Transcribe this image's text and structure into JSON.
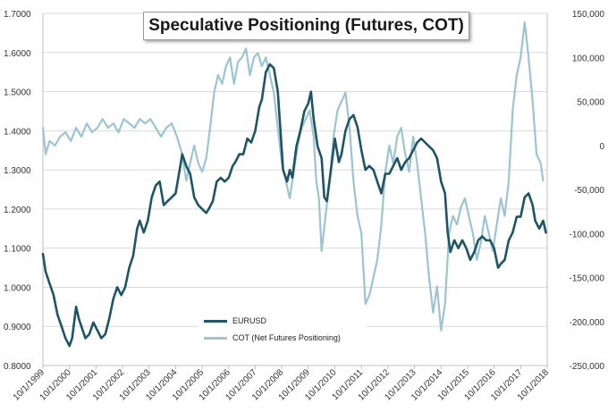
{
  "chart_data": {
    "type": "line",
    "title": "Speculative Positioning (Futures, COT)",
    "left_axis": {
      "min": 0.8,
      "max": 1.7,
      "step": 0.1,
      "ticks": [
        "0.8000",
        "0.9000",
        "1.0000",
        "1.1000",
        "1.2000",
        "1.3000",
        "1.4000",
        "1.5000",
        "1.6000",
        "1.7000"
      ]
    },
    "right_axis": {
      "min": -250000,
      "max": 150000,
      "step": 50000,
      "ticks": [
        "-250,000",
        "-200,000",
        "-150,000",
        "-100,000",
        "-50,000",
        "0",
        "50,000",
        "100,000",
        "150,000"
      ]
    },
    "x_axis": {
      "min": 1999.75,
      "max": 2018.75,
      "ticks": [
        "10/1/1999",
        "10/1/2000",
        "10/1/2001",
        "10/1/2002",
        "10/1/2003",
        "10/1/2004",
        "10/1/2005",
        "10/1/2006",
        "10/1/2007",
        "10/1/2008",
        "10/1/2009",
        "10/1/2010",
        "10/1/2011",
        "10/1/2012",
        "10/1/2013",
        "10/1/2014",
        "10/1/2015",
        "10/1/2016",
        "10/1/2017",
        "10/1/2018"
      ]
    },
    "grid": true,
    "legend_position": "bottom-center",
    "series": [
      {
        "name": "EURUSD",
        "axis": "left",
        "color": "#1e5566",
        "x": [
          1999.75,
          1999.85,
          2000.0,
          2000.15,
          2000.3,
          2000.45,
          2000.6,
          2000.75,
          2000.85,
          2001.0,
          2001.1,
          2001.2,
          2001.35,
          2001.5,
          2001.65,
          2001.8,
          2001.95,
          2002.1,
          2002.25,
          2002.4,
          2002.55,
          2002.7,
          2002.85,
          2003.0,
          2003.15,
          2003.3,
          2003.4,
          2003.55,
          2003.7,
          2003.85,
          2004.0,
          2004.15,
          2004.3,
          2004.45,
          2004.6,
          2004.75,
          2004.9,
          2005.0,
          2005.15,
          2005.3,
          2005.45,
          2005.6,
          2005.75,
          2005.9,
          2006.0,
          2006.15,
          2006.3,
          2006.45,
          2006.6,
          2006.75,
          2006.9,
          2007.0,
          2007.15,
          2007.3,
          2007.45,
          2007.6,
          2007.75,
          2007.9,
          2008.0,
          2008.15,
          2008.3,
          2008.45,
          2008.6,
          2008.7,
          2008.8,
          2008.95,
          2009.05,
          2009.15,
          2009.3,
          2009.45,
          2009.6,
          2009.75,
          2009.85,
          2009.95,
          2010.1,
          2010.25,
          2010.35,
          2010.45,
          2010.6,
          2010.75,
          2010.9,
          2011.0,
          2011.15,
          2011.3,
          2011.45,
          2011.6,
          2011.75,
          2011.9,
          2012.05,
          2012.2,
          2012.35,
          2012.5,
          2012.65,
          2012.8,
          2012.95,
          2013.1,
          2013.25,
          2013.4,
          2013.55,
          2013.7,
          2013.85,
          2014.0,
          2014.15,
          2014.3,
          2014.45,
          2014.6,
          2014.75,
          2014.9,
          2015.0,
          2015.1,
          2015.25,
          2015.4,
          2015.55,
          2015.7,
          2015.85,
          2016.0,
          2016.15,
          2016.3,
          2016.45,
          2016.6,
          2016.75,
          2016.9,
          2017.0,
          2017.15,
          2017.3,
          2017.45,
          2017.6,
          2017.75,
          2017.9,
          2018.05,
          2018.2,
          2018.3,
          2018.45,
          2018.6,
          2018.7
        ],
        "y": [
          1.085,
          1.04,
          1.01,
          0.98,
          0.93,
          0.9,
          0.87,
          0.85,
          0.87,
          0.95,
          0.92,
          0.9,
          0.87,
          0.88,
          0.91,
          0.89,
          0.87,
          0.88,
          0.92,
          0.97,
          1.0,
          0.98,
          1.0,
          1.05,
          1.08,
          1.15,
          1.17,
          1.14,
          1.17,
          1.23,
          1.26,
          1.27,
          1.21,
          1.22,
          1.23,
          1.24,
          1.3,
          1.34,
          1.31,
          1.29,
          1.23,
          1.21,
          1.2,
          1.19,
          1.2,
          1.22,
          1.27,
          1.28,
          1.27,
          1.28,
          1.31,
          1.32,
          1.34,
          1.34,
          1.38,
          1.37,
          1.4,
          1.46,
          1.48,
          1.55,
          1.57,
          1.56,
          1.5,
          1.4,
          1.3,
          1.27,
          1.3,
          1.28,
          1.36,
          1.4,
          1.45,
          1.47,
          1.5,
          1.43,
          1.36,
          1.33,
          1.23,
          1.22,
          1.3,
          1.38,
          1.32,
          1.34,
          1.4,
          1.43,
          1.44,
          1.41,
          1.35,
          1.3,
          1.31,
          1.3,
          1.27,
          1.24,
          1.29,
          1.29,
          1.31,
          1.33,
          1.3,
          1.32,
          1.33,
          1.35,
          1.37,
          1.38,
          1.37,
          1.36,
          1.35,
          1.33,
          1.27,
          1.24,
          1.14,
          1.09,
          1.12,
          1.1,
          1.12,
          1.1,
          1.07,
          1.09,
          1.12,
          1.13,
          1.12,
          1.12,
          1.1,
          1.05,
          1.06,
          1.07,
          1.12,
          1.14,
          1.18,
          1.18,
          1.23,
          1.24,
          1.21,
          1.17,
          1.15,
          1.17,
          1.14
        ]
      },
      {
        "name": "COT (Net Futures Positioning)",
        "axis": "right",
        "color": "#9cc4d3",
        "x": [
          1999.75,
          1999.85,
          2000.0,
          2000.2,
          2000.4,
          2000.6,
          2000.8,
          2001.0,
          2001.2,
          2001.4,
          2001.6,
          2001.8,
          2002.0,
          2002.2,
          2002.4,
          2002.6,
          2002.8,
          2003.0,
          2003.2,
          2003.4,
          2003.6,
          2003.8,
          2004.0,
          2004.2,
          2004.4,
          2004.6,
          2004.8,
          2005.0,
          2005.15,
          2005.3,
          2005.45,
          2005.6,
          2005.75,
          2005.9,
          2006.05,
          2006.2,
          2006.35,
          2006.5,
          2006.65,
          2006.8,
          2006.95,
          2007.1,
          2007.25,
          2007.4,
          2007.55,
          2007.7,
          2007.85,
          2008.0,
          2008.15,
          2008.3,
          2008.45,
          2008.6,
          2008.75,
          2008.9,
          2009.05,
          2009.2,
          2009.35,
          2009.5,
          2009.65,
          2009.8,
          2009.95,
          2010.05,
          2010.15,
          2010.25,
          2010.4,
          2010.55,
          2010.7,
          2010.85,
          2011.0,
          2011.15,
          2011.3,
          2011.45,
          2011.6,
          2011.75,
          2011.9,
          2012.05,
          2012.2,
          2012.35,
          2012.5,
          2012.65,
          2012.8,
          2012.95,
          2013.1,
          2013.25,
          2013.4,
          2013.55,
          2013.7,
          2013.85,
          2014.0,
          2014.15,
          2014.3,
          2014.45,
          2014.6,
          2014.75,
          2014.9,
          2015.05,
          2015.2,
          2015.35,
          2015.5,
          2015.65,
          2015.8,
          2015.95,
          2016.1,
          2016.25,
          2016.4,
          2016.55,
          2016.7,
          2016.85,
          2017.0,
          2017.15,
          2017.3,
          2017.45,
          2017.6,
          2017.75,
          2017.9,
          2018.05,
          2018.2,
          2018.35,
          2018.5,
          2018.6
        ],
        "y": [
          20000,
          -10000,
          5000,
          0,
          10000,
          15000,
          5000,
          20000,
          10000,
          25000,
          15000,
          20000,
          30000,
          20000,
          25000,
          15000,
          30000,
          25000,
          20000,
          30000,
          25000,
          30000,
          20000,
          10000,
          20000,
          25000,
          10000,
          -10000,
          -40000,
          -20000,
          0,
          -20000,
          -30000,
          -15000,
          20000,
          60000,
          80000,
          70000,
          90000,
          100000,
          70000,
          95000,
          100000,
          110000,
          80000,
          100000,
          105000,
          90000,
          100000,
          80000,
          60000,
          20000,
          -20000,
          -40000,
          -60000,
          -30000,
          0,
          20000,
          30000,
          40000,
          10000,
          -40000,
          -60000,
          -120000,
          -80000,
          -40000,
          10000,
          40000,
          50000,
          60000,
          20000,
          -40000,
          -80000,
          -100000,
          -180000,
          -170000,
          -150000,
          -130000,
          -90000,
          -30000,
          0,
          -20000,
          10000,
          20000,
          -10000,
          -30000,
          10000,
          -20000,
          -60000,
          -100000,
          -150000,
          -190000,
          -160000,
          -210000,
          -180000,
          -100000,
          -80000,
          -90000,
          -70000,
          -60000,
          -80000,
          -100000,
          -130000,
          -110000,
          -80000,
          -100000,
          -120000,
          -90000,
          -60000,
          -80000,
          -40000,
          40000,
          80000,
          100000,
          140000,
          100000,
          50000,
          -10000,
          -20000,
          -40000
        ]
      }
    ]
  }
}
